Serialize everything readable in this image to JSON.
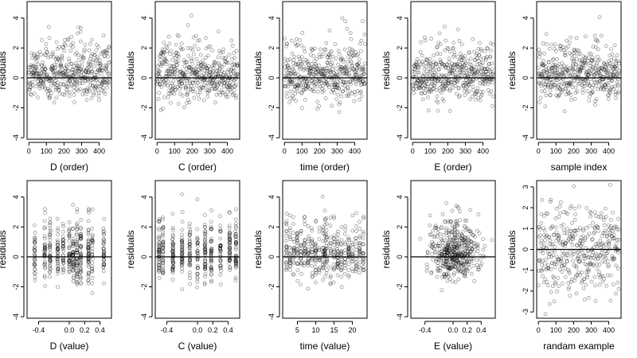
{
  "chart_data": [
    {
      "type": "scatter",
      "xlabel": "D (order)",
      "ylabel": "residuals",
      "xlim": [
        -10,
        470
      ],
      "ylim": [
        -4.1,
        5.1
      ],
      "xticks": [
        0,
        100,
        200,
        300,
        400
      ],
      "yticks": [
        -4,
        -2,
        0,
        2,
        4
      ],
      "xmode": "order",
      "reference_line_y": 0,
      "n_points": 460
    },
    {
      "type": "scatter",
      "xlabel": "C (order)",
      "ylabel": "residuals",
      "xlim": [
        -10,
        470
      ],
      "ylim": [
        -4.1,
        5.1
      ],
      "xticks": [
        0,
        100,
        200,
        300,
        400
      ],
      "yticks": [
        -4,
        -2,
        0,
        2,
        4
      ],
      "xmode": "order",
      "reference_line_y": 0,
      "n_points": 460
    },
    {
      "type": "scatter",
      "xlabel": "time (order)",
      "ylabel": "residuals",
      "xlim": [
        -10,
        470
      ],
      "ylim": [
        -4.1,
        5.1
      ],
      "xticks": [
        0,
        100,
        200,
        300,
        400
      ],
      "yticks": [
        -4,
        -2,
        0,
        2,
        4
      ],
      "xmode": "order",
      "reference_line_y": 0,
      "n_points": 460
    },
    {
      "type": "scatter",
      "xlabel": "E (order)",
      "ylabel": "residuals",
      "xlim": [
        -10,
        470
      ],
      "ylim": [
        -4.1,
        5.1
      ],
      "xticks": [
        0,
        100,
        200,
        300,
        400
      ],
      "yticks": [
        -4,
        -2,
        0,
        2,
        4
      ],
      "xmode": "order",
      "reference_line_y": 0,
      "n_points": 460
    },
    {
      "type": "scatter",
      "xlabel": "sample index",
      "ylabel": "residuals",
      "xlim": [
        -10,
        470
      ],
      "ylim": [
        -4.1,
        5.1
      ],
      "xticks": [
        0,
        100,
        200,
        300,
        400
      ],
      "yticks": [
        -4,
        -2,
        0,
        2,
        4
      ],
      "xmode": "order",
      "reference_line_y": 0,
      "n_points": 460
    },
    {
      "type": "scatter",
      "xlabel": "D (value)",
      "ylabel": "residuals",
      "xlim": [
        -0.55,
        0.55
      ],
      "ylim": [
        -4.1,
        5.1
      ],
      "xticks": [
        -0.4,
        0,
        0.2,
        0.4
      ],
      "xticklabels": [
        "-0.4",
        "0.0",
        "0.2",
        "0.4"
      ],
      "yticks": [
        -4,
        -2,
        0,
        2,
        4
      ],
      "xmode": "levels",
      "levels": [
        -0.45,
        -0.32,
        -0.25,
        -0.15,
        -0.08,
        0,
        0.05,
        0.1,
        0.15,
        0.25,
        0.3,
        0.45
      ],
      "reference_line_y": 0,
      "n_points": 460
    },
    {
      "type": "scatter",
      "xlabel": "C (value)",
      "ylabel": "residuals",
      "xlim": [
        -0.55,
        0.55
      ],
      "ylim": [
        -4.1,
        5.1
      ],
      "xticks": [
        -0.4,
        0,
        0.2,
        0.4
      ],
      "xticklabels": [
        "-0.4",
        "0.0",
        "0.2",
        "0.4"
      ],
      "yticks": [
        -4,
        -2,
        0,
        2,
        4
      ],
      "xmode": "levels",
      "levels": [
        -0.5,
        -0.45,
        -0.32,
        -0.2,
        -0.1,
        0,
        0.1,
        0.18,
        0.3,
        0.42,
        0.5
      ],
      "reference_line_y": 0,
      "n_points": 460
    },
    {
      "type": "scatter",
      "xlabel": "time (value)",
      "ylabel": "residuals",
      "xlim": [
        1,
        24
      ],
      "ylim": [
        -4.1,
        5.1
      ],
      "xticks": [
        5,
        10,
        15,
        20
      ],
      "yticks": [
        -4,
        -2,
        0,
        2,
        4
      ],
      "xmode": "levels",
      "levels": [
        2,
        3,
        4,
        5,
        6,
        7,
        8,
        9,
        10,
        11,
        12,
        12.5,
        13,
        14,
        15,
        16,
        17,
        18,
        19,
        20,
        21,
        22,
        23
      ],
      "reference_line_y": 0,
      "n_points": 460
    },
    {
      "type": "scatter",
      "xlabel": "E (value)",
      "ylabel": "residuals",
      "xlim": [
        -0.6,
        0.6
      ],
      "ylim": [
        -4.1,
        5.1
      ],
      "xticks": [
        -0.4,
        0,
        0.2,
        0.4
      ],
      "xticklabels": [
        "-0.4",
        "0.0",
        "0.2",
        "0.4"
      ],
      "yticks": [
        -4,
        -2,
        0,
        2,
        4
      ],
      "xmode": "continuous",
      "center": 0.02,
      "reference_line_y": 0,
      "n_points": 460
    },
    {
      "type": "scatter",
      "xlabel": "randam example",
      "ylabel": "residuals",
      "xlim": [
        -10,
        470
      ],
      "ylim": [
        -3.3,
        3.3
      ],
      "xticks": [
        0,
        100,
        200,
        300,
        400
      ],
      "yticks": [
        -3,
        -2,
        -1,
        0,
        1,
        2,
        3
      ],
      "xmode": "order",
      "reference_line_y": 0,
      "n_points": 400
    }
  ]
}
